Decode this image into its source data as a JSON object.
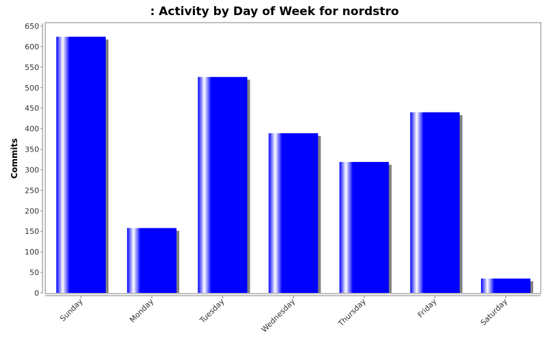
{
  "colors": {
    "bar": "#0000ff",
    "bar_highlight": "#ffffff",
    "bar_shadow": "#808080",
    "plot_border": "#808080",
    "axis": "#808080"
  },
  "chart_data": {
    "type": "bar",
    "title": ": Activity by Day of Week for nordstro",
    "xlabel": "",
    "ylabel": "Commits",
    "categories": [
      "Sunday",
      "Monday",
      "Tuesday",
      "Wednesday",
      "Thursday",
      "Friday",
      "Saturday"
    ],
    "values": [
      624,
      158,
      526,
      389,
      319,
      440,
      35
    ],
    "ylim": [
      0,
      650
    ],
    "yticks": [
      0,
      50,
      100,
      150,
      200,
      250,
      300,
      350,
      400,
      450,
      500,
      550,
      600,
      650
    ],
    "grid": false,
    "legend": "none"
  }
}
